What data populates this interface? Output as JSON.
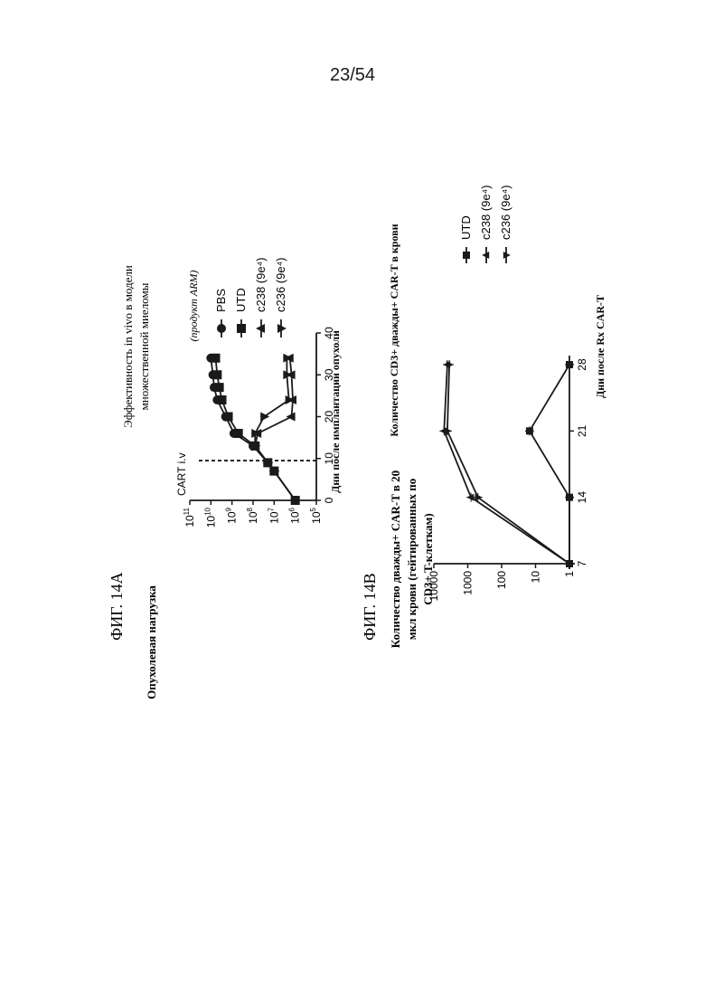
{
  "page": {
    "number": "23/54"
  },
  "figure_a": {
    "label": "ФИГ. 14А",
    "title_lines": [
      "Эффективность in vivo в модели",
      "множественной миеломы"
    ],
    "ylabel": "Опухолевая нагрузка",
    "xlabel": "Дни после имплантации опухоли",
    "annotation": "CART i.v",
    "legend_title": "(продукт ARM)"
  },
  "figure_b": {
    "label": "ФИГ. 14В",
    "title": "Количество CD3+ дважды+ CAR-T в крови",
    "ylabel_lines": [
      "Количество дважды+ CAR-T в 20",
      "мкл крови (гейтированных по",
      "CD3+ T-клеткам)"
    ],
    "xlabel": "Дни после Rx CAR-T"
  },
  "chart_data": [
    {
      "type": "line",
      "x_ticks": [
        0,
        10,
        20,
        30,
        40
      ],
      "xlim": [
        0,
        40
      ],
      "y_ticks": [
        "10^5",
        "10^6",
        "10^7",
        "10^8",
        "10^9",
        "10^10",
        "10^11"
      ],
      "ylim": [
        100000,
        100000000000
      ],
      "log_y": true,
      "vline_x": 9.5,
      "series": [
        {
          "name": "PBS",
          "marker": "circle",
          "x": [
            0,
            7,
            9,
            13,
            16,
            20,
            24,
            27,
            30,
            34
          ],
          "y": [
            1000000,
            10000000,
            20000000,
            100000000,
            800000000,
            2000000000,
            5000000000,
            7000000000,
            8000000000,
            10000000000
          ]
        },
        {
          "name": "UTD",
          "marker": "square",
          "x": [
            0,
            7,
            9,
            13,
            16,
            20,
            24,
            27,
            30,
            34
          ],
          "y": [
            1000000,
            10000000,
            20000000,
            80000000,
            500000000,
            1500000000,
            3000000000,
            4000000000,
            5000000000,
            6000000000
          ]
        },
        {
          "name": "c238 (9e⁴)",
          "marker": "triangle-up",
          "x": [
            0,
            7,
            9,
            13,
            16,
            20,
            24,
            30,
            34
          ],
          "y": [
            1000000,
            10000000,
            20000000,
            80000000,
            60000000,
            1500000,
            1300000,
            1500000,
            1800000
          ]
        },
        {
          "name": "c236 (9e⁴)",
          "marker": "triangle-down",
          "x": [
            0,
            7,
            9,
            13,
            16,
            20,
            24,
            30,
            34
          ],
          "y": [
            1000000,
            10000000,
            20000000,
            80000000,
            80000000,
            30000000,
            2000000,
            2500000,
            2500000
          ]
        }
      ]
    },
    {
      "type": "line",
      "x_ticks": [
        "7",
        "14",
        "21",
        "28"
      ],
      "x": [
        7,
        14,
        21,
        28
      ],
      "y_ticks": [
        "1",
        "10",
        "100",
        "1000",
        "10000"
      ],
      "ylim": [
        1,
        10000
      ],
      "log_y": true,
      "series": [
        {
          "name": "UTD",
          "marker": "square",
          "values": [
            1,
            1,
            15,
            1
          ]
        },
        {
          "name": "c238 (9e⁴)",
          "marker": "triangle-up",
          "values": [
            1,
            800,
            5000,
            4000
          ]
        },
        {
          "name": "c236 (9e⁴)",
          "marker": "triangle-down",
          "values": [
            1,
            500,
            4000,
            3500
          ]
        }
      ]
    }
  ]
}
